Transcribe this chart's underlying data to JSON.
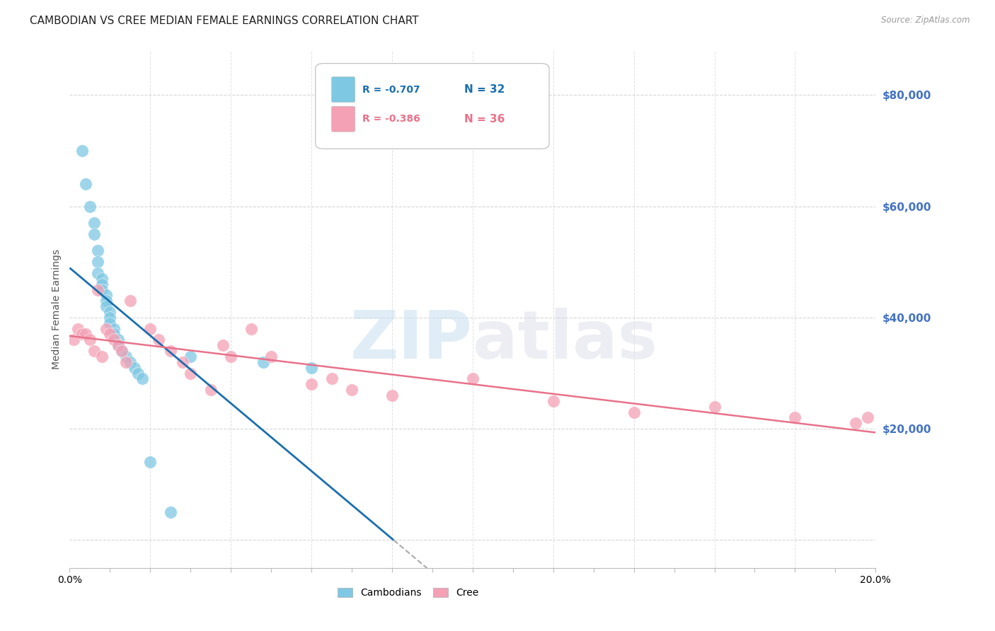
{
  "title": "CAMBODIAN VS CREE MEDIAN FEMALE EARNINGS CORRELATION CHART",
  "source": "Source: ZipAtlas.com",
  "ylabel": "Median Female Earnings",
  "yticks": [
    0,
    20000,
    40000,
    60000,
    80000
  ],
  "ytick_labels": [
    "",
    "$20,000",
    "$40,000",
    "$60,000",
    "$80,000"
  ],
  "xlim": [
    0.0,
    0.2
  ],
  "ylim": [
    -5000,
    88000
  ],
  "legend_r1": "R = -0.707",
  "legend_n1": "N = 32",
  "legend_r2": "R = -0.386",
  "legend_n2": "N = 36",
  "color_cambodian": "#7ec8e3",
  "color_cree": "#f4a0b5",
  "color_line_cambodian": "#1a6faf",
  "color_line_cree": "#e8728a",
  "color_ytick_labels": "#4472c4",
  "background_color": "#ffffff",
  "cambodian_x": [
    0.003,
    0.004,
    0.005,
    0.006,
    0.006,
    0.007,
    0.007,
    0.007,
    0.008,
    0.008,
    0.008,
    0.009,
    0.009,
    0.009,
    0.01,
    0.01,
    0.01,
    0.011,
    0.011,
    0.012,
    0.012,
    0.013,
    0.014,
    0.015,
    0.016,
    0.017,
    0.018,
    0.02,
    0.025,
    0.03,
    0.048,
    0.06
  ],
  "cambodian_y": [
    70000,
    64000,
    60000,
    57000,
    55000,
    52000,
    50000,
    48000,
    47000,
    46000,
    45000,
    44000,
    43000,
    42000,
    41000,
    40000,
    39000,
    38000,
    37000,
    36000,
    35000,
    34000,
    33000,
    32000,
    31000,
    30000,
    29000,
    14000,
    5000,
    33000,
    32000,
    31000
  ],
  "cree_x": [
    0.001,
    0.002,
    0.003,
    0.004,
    0.005,
    0.006,
    0.007,
    0.008,
    0.009,
    0.01,
    0.011,
    0.012,
    0.013,
    0.014,
    0.015,
    0.02,
    0.022,
    0.025,
    0.028,
    0.03,
    0.035,
    0.038,
    0.04,
    0.045,
    0.05,
    0.06,
    0.065,
    0.07,
    0.08,
    0.1,
    0.12,
    0.14,
    0.16,
    0.18,
    0.195,
    0.198
  ],
  "cree_y": [
    36000,
    38000,
    37000,
    37000,
    36000,
    34000,
    45000,
    33000,
    38000,
    37000,
    36000,
    35000,
    34000,
    32000,
    43000,
    38000,
    36000,
    34000,
    32000,
    30000,
    27000,
    35000,
    33000,
    38000,
    33000,
    28000,
    29000,
    27000,
    26000,
    29000,
    25000,
    23000,
    24000,
    22000,
    21000,
    22000
  ],
  "watermark_zip": "ZIP",
  "watermark_atlas": "atlas",
  "title_fontsize": 11,
  "axis_label_fontsize": 9,
  "tick_fontsize": 9
}
